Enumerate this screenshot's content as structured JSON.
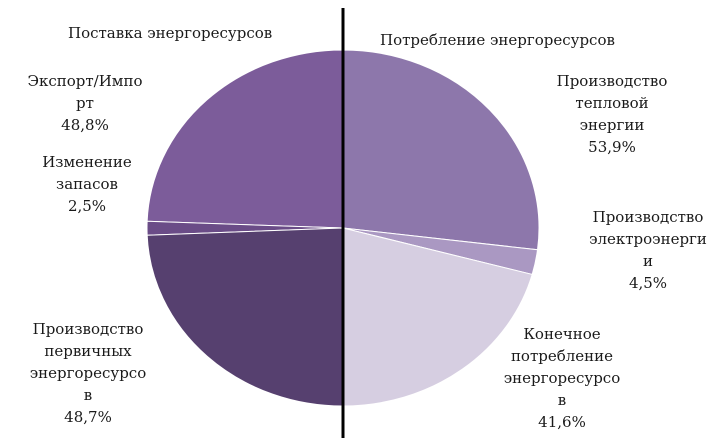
{
  "chart_data": {
    "type": "pie",
    "subtype": "split-half",
    "halves": [
      {
        "name": "Поставка энергоресурсов",
        "side": "left",
        "slices": [
          {
            "lines": [
              "Экспорт/Импо",
              "рт"
            ],
            "value_label": "48,8%",
            "value": 48.8,
            "color": "#7c5c9a"
          },
          {
            "lines": [
              "Изменение",
              "запасов"
            ],
            "value_label": "2,5%",
            "value": 2.5,
            "color": "#6a4c87"
          },
          {
            "lines": [
              "Производство",
              "первичных",
              "энергоресурсо",
              "в"
            ],
            "value_label": "48,7%",
            "value": 48.7,
            "color": "#56406f"
          }
        ]
      },
      {
        "name": "Потребление энергоресурсов",
        "side": "right",
        "slices": [
          {
            "lines": [
              "Производство",
              "тепловой",
              "энергии"
            ],
            "value_label": "53,9%",
            "value": 53.9,
            "color": "#8d77ab"
          },
          {
            "lines": [
              "Производство",
              "электроэнерги",
              "и"
            ],
            "value_label": "4,5%",
            "value": 4.5,
            "color": "#aa98c2"
          },
          {
            "lines": [
              "Конечное",
              "потребление",
              "энергоресурсо",
              "в"
            ],
            "value_label": "41,6%",
            "value": 41.6,
            "color": "#d6cee1"
          }
        ]
      }
    ],
    "divider_color": "#000000"
  }
}
